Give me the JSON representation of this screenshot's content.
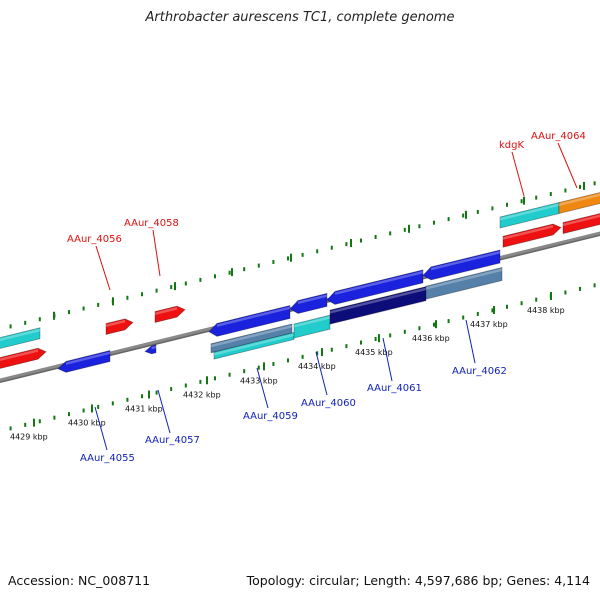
{
  "title": "Arthrobacter aurescens TC1, complete genome",
  "footer": {
    "accession_label": "Accession: NC_008711",
    "summary_label": "Topology: circular; Length: 4,597,686 bp; Genes: 4,114"
  },
  "kbp_ticks": [
    {
      "label": "4429 kbp"
    },
    {
      "label": "4430 kbp"
    },
    {
      "label": "4431 kbp"
    },
    {
      "label": "4432 kbp"
    },
    {
      "label": "4433 kbp"
    },
    {
      "label": "4434 kbp"
    },
    {
      "label": "4435 kbp"
    },
    {
      "label": "4436 kbp"
    },
    {
      "label": "4437 kbp"
    },
    {
      "label": "4438 kbp"
    }
  ],
  "forward_gene_labels": [
    {
      "name": "AAur_4056"
    },
    {
      "name": "AAur_4058"
    },
    {
      "name": "kdgK"
    },
    {
      "name": "AAur_4064"
    }
  ],
  "reverse_gene_labels": [
    {
      "name": "AAur_4055"
    },
    {
      "name": "AAur_4057"
    },
    {
      "name": "AAur_4059"
    },
    {
      "name": "AAur_4060"
    },
    {
      "name": "AAur_4061"
    },
    {
      "name": "AAur_4062"
    }
  ],
  "colors": {
    "forward_gene": "#ee1111",
    "reverse_gene": "#1a22dd",
    "reverse_gene_dark": "#0d0d7a",
    "cds_band": "#22cccc",
    "steel_band": "#5580aa",
    "orange_gene": "#ee8811",
    "tick_green": "#117711",
    "backbone": "#888888",
    "forward_label": "#dd1111",
    "reverse_label": "#1122bb"
  }
}
